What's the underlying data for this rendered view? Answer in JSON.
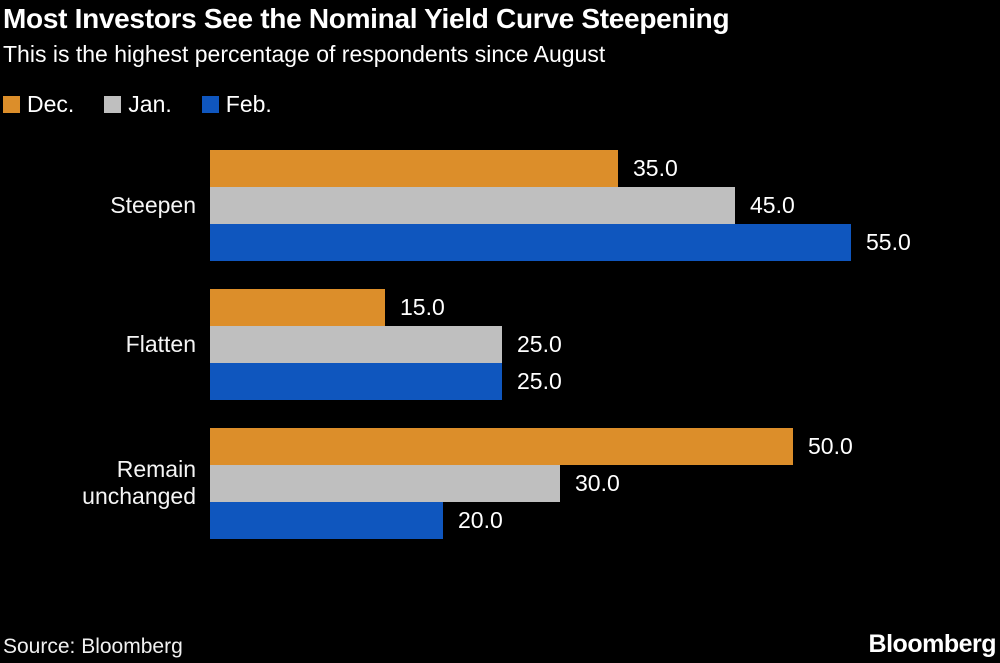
{
  "title": "Most Investors See the Nominal Yield Curve Steepening",
  "subtitle": "This is the highest percentage of respondents since August",
  "footer": {
    "source": "Source: Bloomberg",
    "brand": "Bloomberg"
  },
  "colors": {
    "background": "#000000",
    "text": "#FFFFFF",
    "dec_orange": "#DC8E2A",
    "jan_gray": "#BFBFBF",
    "feb_blue": "#0F56BE"
  },
  "chart_data": {
    "type": "bar",
    "orientation": "horizontal",
    "title": "Most Investors See the Nominal Yield Curve Steepening",
    "subtitle": "This is the highest percentage of respondents since August",
    "categories": [
      "Steepen",
      "Flatten",
      "Remain unchanged"
    ],
    "series": [
      {
        "name": "Dec.",
        "color": "#DC8E2A",
        "values": [
          35.0,
          15.0,
          50.0
        ]
      },
      {
        "name": "Jan.",
        "color": "#BFBFBF",
        "values": [
          45.0,
          25.0,
          30.0
        ]
      },
      {
        "name": "Feb.",
        "color": "#0F56BE",
        "values": [
          55.0,
          25.0,
          20.0
        ]
      }
    ],
    "value_labels": true,
    "value_format": ".1f",
    "xlim": [
      0,
      66.6
    ],
    "grid": false,
    "axes_visible": false,
    "legend_position": "top-left"
  }
}
